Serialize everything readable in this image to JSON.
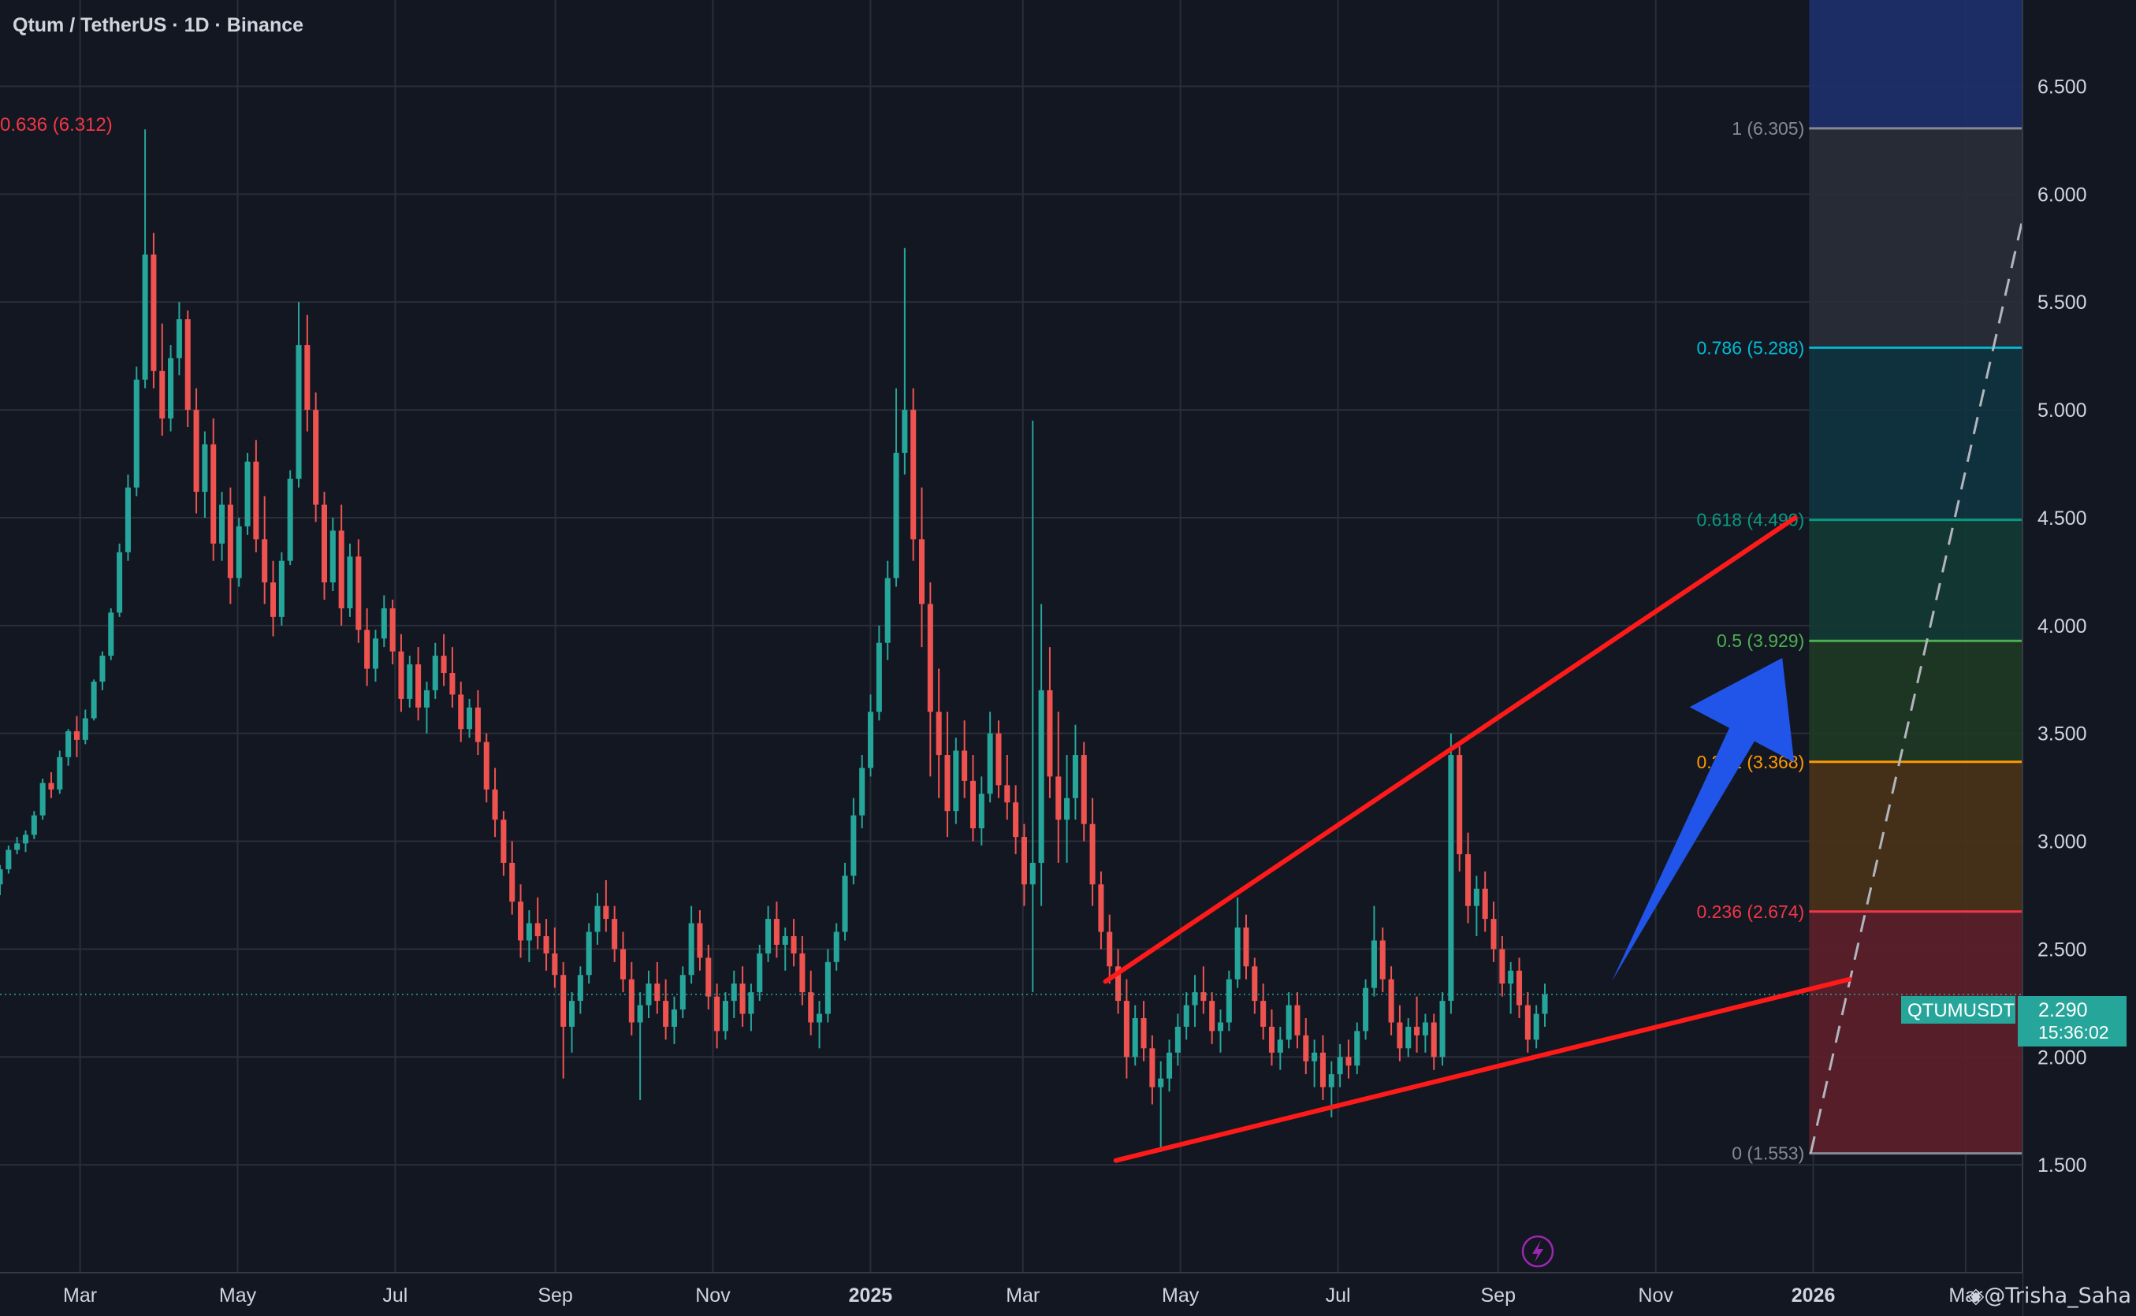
{
  "header": {
    "title": "Qtum / TetherUS · 1D · Binance"
  },
  "watermark": {
    "text": "◈@Trisha_Saha"
  },
  "chart_data": {
    "type": "candlestick",
    "symbol": "QTUMUSDT",
    "x_axis": {
      "labels": [
        {
          "date": "2024-03-01",
          "label": "Mar"
        },
        {
          "date": "2024-05-01",
          "label": "May"
        },
        {
          "date": "2024-07-01",
          "label": "Jul"
        },
        {
          "date": "2024-09-01",
          "label": "Sep"
        },
        {
          "date": "2024-11-01",
          "label": "Nov"
        },
        {
          "date": "2025-01-01",
          "label": "2025"
        },
        {
          "date": "2025-03-01",
          "label": "Mar"
        },
        {
          "date": "2025-05-01",
          "label": "May"
        },
        {
          "date": "2025-07-01",
          "label": "Jul"
        },
        {
          "date": "2025-09-01",
          "label": "Sep"
        },
        {
          "date": "2025-11-01",
          "label": "Nov"
        },
        {
          "date": "2026-01-01",
          "label": "2026"
        },
        {
          "date": "2026-03-01",
          "label": "Mar"
        }
      ],
      "range": [
        "2024-01-30",
        "2026-03-23"
      ]
    },
    "y_axis": {
      "ticks": [
        "1.500",
        "2.000",
        "2.500",
        "3.000",
        "3.500",
        "4.000",
        "4.500",
        "5.000",
        "5.500",
        "6.000",
        "6.500"
      ],
      "range": [
        1.0,
        6.9
      ]
    },
    "grid": true,
    "last_price": {
      "symbol": "QTUMUSDT",
      "value": "2.290",
      "countdown": "15:36:02",
      "price": 2.29
    },
    "high_marker": {
      "text": "0.636 (6.312)"
    },
    "fibonacci": {
      "start": {
        "date": "2025-12-31",
        "price": 1.553
      },
      "end": {
        "date": "2026-03-31",
        "price": 6.305
      },
      "levels": [
        {
          "ratio": 0,
          "price": 1.553,
          "label": "0 (1.553)",
          "color": "#868993"
        },
        {
          "ratio": 0.236,
          "price": 2.674,
          "label": "0.236 (2.674)",
          "color": "#f23645"
        },
        {
          "ratio": 0.382,
          "price": 3.368,
          "label": "0.382 (3.368)",
          "color": "#ff9800"
        },
        {
          "ratio": 0.5,
          "price": 3.929,
          "label": "0.5 (3.929)",
          "color": "#4caf50"
        },
        {
          "ratio": 0.618,
          "price": 4.49,
          "label": "0.618 (4.490)",
          "color": "#089981"
        },
        {
          "ratio": 0.786,
          "price": 5.288,
          "label": "0.786 (5.288)",
          "color": "#00bcd4"
        },
        {
          "ratio": 1,
          "price": 6.305,
          "label": "1 (6.305)",
          "color": "#868993"
        }
      ],
      "zones": [
        "#5d1f2a",
        "#4a3218",
        "#1f3a25",
        "#133a33",
        "#0f3440",
        "#2a2e39",
        "#1e2f6b"
      ]
    },
    "trendlines": [
      {
        "name": "upper",
        "color": "#ff1a1a",
        "from": {
          "date": "2025-04-02",
          "price": 2.35
        },
        "to": {
          "date": "2025-12-25",
          "price": 4.5
        }
      },
      {
        "name": "lower",
        "color": "#ff1a1a",
        "from": {
          "date": "2025-04-06",
          "price": 1.52
        },
        "to": {
          "date": "2026-01-15",
          "price": 2.36
        }
      }
    ],
    "arrow": {
      "color": "#2154e8",
      "from": {
        "date": "2025-10-15",
        "price": 2.35
      },
      "to": {
        "date": "2025-12-20",
        "price": 3.85
      }
    },
    "candles_ohlc": [
      [
        2.8,
        2.89,
        2.75,
        2.87
      ],
      [
        2.87,
        2.98,
        2.85,
        2.96
      ],
      [
        2.96,
        3.02,
        2.94,
        2.99
      ],
      [
        2.99,
        3.05,
        2.95,
        3.03
      ],
      [
        3.03,
        3.14,
        3.01,
        3.12
      ],
      [
        3.12,
        3.29,
        3.1,
        3.27
      ],
      [
        3.27,
        3.32,
        3.2,
        3.24
      ],
      [
        3.24,
        3.42,
        3.22,
        3.39
      ],
      [
        3.39,
        3.52,
        3.35,
        3.51
      ],
      [
        3.51,
        3.58,
        3.39,
        3.47
      ],
      [
        3.47,
        3.61,
        3.45,
        3.57
      ],
      [
        3.57,
        3.75,
        3.56,
        3.74
      ],
      [
        3.74,
        3.88,
        3.7,
        3.86
      ],
      [
        3.86,
        4.08,
        3.84,
        4.06
      ],
      [
        4.06,
        4.38,
        4.04,
        4.34
      ],
      [
        4.34,
        4.7,
        4.3,
        4.64
      ],
      [
        4.64,
        5.2,
        4.6,
        5.14
      ],
      [
        5.14,
        6.3,
        5.1,
        5.72
      ],
      [
        5.72,
        5.82,
        5.1,
        5.18
      ],
      [
        5.18,
        5.4,
        4.88,
        4.96
      ],
      [
        4.96,
        5.3,
        4.9,
        5.24
      ],
      [
        5.24,
        5.5,
        5.16,
        5.42
      ],
      [
        5.42,
        5.46,
        4.92,
        5.0
      ],
      [
        5.0,
        5.1,
        4.52,
        4.62
      ],
      [
        4.62,
        4.9,
        4.5,
        4.84
      ],
      [
        4.84,
        4.96,
        4.3,
        4.38
      ],
      [
        4.38,
        4.62,
        4.3,
        4.56
      ],
      [
        4.56,
        4.64,
        4.1,
        4.22
      ],
      [
        4.22,
        4.5,
        4.18,
        4.46
      ],
      [
        4.46,
        4.8,
        4.42,
        4.76
      ],
      [
        4.76,
        4.86,
        4.34,
        4.4
      ],
      [
        4.4,
        4.6,
        4.1,
        4.2
      ],
      [
        4.2,
        4.3,
        3.95,
        4.04
      ],
      [
        4.04,
        4.34,
        4.0,
        4.3
      ],
      [
        4.3,
        4.72,
        4.28,
        4.68
      ],
      [
        4.68,
        5.5,
        4.64,
        5.3
      ],
      [
        5.3,
        5.44,
        4.9,
        5.0
      ],
      [
        5.0,
        5.08,
        4.48,
        4.56
      ],
      [
        4.56,
        4.62,
        4.12,
        4.2
      ],
      [
        4.2,
        4.5,
        4.16,
        4.44
      ],
      [
        4.44,
        4.56,
        4.0,
        4.08
      ],
      [
        4.08,
        4.38,
        4.04,
        4.32
      ],
      [
        4.32,
        4.4,
        3.92,
        3.98
      ],
      [
        3.98,
        4.08,
        3.72,
        3.8
      ],
      [
        3.8,
        3.98,
        3.74,
        3.94
      ],
      [
        3.94,
        4.14,
        3.9,
        4.08
      ],
      [
        4.08,
        4.12,
        3.82,
        3.88
      ],
      [
        3.88,
        3.96,
        3.6,
        3.66
      ],
      [
        3.66,
        3.86,
        3.62,
        3.82
      ],
      [
        3.82,
        3.9,
        3.56,
        3.62
      ],
      [
        3.62,
        3.74,
        3.5,
        3.7
      ],
      [
        3.7,
        3.92,
        3.66,
        3.86
      ],
      [
        3.86,
        3.96,
        3.72,
        3.78
      ],
      [
        3.78,
        3.9,
        3.62,
        3.68
      ],
      [
        3.68,
        3.74,
        3.46,
        3.52
      ],
      [
        3.52,
        3.66,
        3.48,
        3.62
      ],
      [
        3.62,
        3.7,
        3.4,
        3.46
      ],
      [
        3.46,
        3.5,
        3.18,
        3.24
      ],
      [
        3.24,
        3.34,
        3.02,
        3.1
      ],
      [
        3.1,
        3.14,
        2.84,
        2.9
      ],
      [
        2.9,
        3.0,
        2.66,
        2.72
      ],
      [
        2.72,
        2.8,
        2.46,
        2.54
      ],
      [
        2.54,
        2.68,
        2.44,
        2.62
      ],
      [
        2.62,
        2.74,
        2.5,
        2.56
      ],
      [
        2.56,
        2.64,
        2.4,
        2.48
      ],
      [
        2.48,
        2.6,
        2.32,
        2.38
      ],
      [
        2.38,
        2.44,
        1.9,
        2.14
      ],
      [
        2.14,
        2.3,
        2.02,
        2.26
      ],
      [
        2.26,
        2.42,
        2.2,
        2.38
      ],
      [
        2.38,
        2.62,
        2.34,
        2.58
      ],
      [
        2.58,
        2.76,
        2.52,
        2.7
      ],
      [
        2.7,
        2.82,
        2.58,
        2.64
      ],
      [
        2.64,
        2.7,
        2.44,
        2.5
      ],
      [
        2.5,
        2.58,
        2.3,
        2.36
      ],
      [
        2.36,
        2.44,
        2.1,
        2.16
      ],
      [
        2.16,
        2.3,
        1.8,
        2.24
      ],
      [
        2.24,
        2.4,
        2.18,
        2.34
      ],
      [
        2.34,
        2.44,
        2.2,
        2.26
      ],
      [
        2.26,
        2.36,
        2.08,
        2.14
      ],
      [
        2.14,
        2.28,
        2.06,
        2.22
      ],
      [
        2.22,
        2.42,
        2.18,
        2.38
      ],
      [
        2.38,
        2.7,
        2.34,
        2.62
      ],
      [
        2.62,
        2.68,
        2.4,
        2.46
      ],
      [
        2.46,
        2.52,
        2.22,
        2.28
      ],
      [
        2.28,
        2.34,
        2.04,
        2.12
      ],
      [
        2.12,
        2.3,
        2.08,
        2.26
      ],
      [
        2.26,
        2.4,
        2.18,
        2.34
      ],
      [
        2.34,
        2.42,
        2.14,
        2.2
      ],
      [
        2.2,
        2.34,
        2.12,
        2.3
      ],
      [
        2.3,
        2.52,
        2.26,
        2.48
      ],
      [
        2.48,
        2.7,
        2.44,
        2.64
      ],
      [
        2.64,
        2.72,
        2.46,
        2.52
      ],
      [
        2.52,
        2.6,
        2.4,
        2.56
      ],
      [
        2.56,
        2.64,
        2.42,
        2.48
      ],
      [
        2.48,
        2.56,
        2.24,
        2.3
      ],
      [
        2.3,
        2.4,
        2.1,
        2.16
      ],
      [
        2.16,
        2.26,
        2.04,
        2.2
      ],
      [
        2.2,
        2.5,
        2.16,
        2.44
      ],
      [
        2.44,
        2.62,
        2.4,
        2.58
      ],
      [
        2.58,
        2.9,
        2.54,
        2.84
      ],
      [
        2.84,
        3.2,
        2.8,
        3.12
      ],
      [
        3.12,
        3.4,
        3.06,
        3.34
      ],
      [
        3.34,
        3.68,
        3.3,
        3.6
      ],
      [
        3.6,
        4.0,
        3.56,
        3.92
      ],
      [
        3.92,
        4.3,
        3.84,
        4.22
      ],
      [
        4.22,
        5.1,
        4.18,
        4.8
      ],
      [
        4.8,
        5.75,
        4.7,
        5.0
      ],
      [
        5.0,
        5.1,
        4.3,
        4.4
      ],
      [
        4.4,
        4.64,
        3.9,
        4.1
      ],
      [
        4.1,
        4.2,
        3.3,
        3.6
      ],
      [
        3.6,
        3.8,
        3.2,
        3.4
      ],
      [
        3.4,
        3.6,
        3.02,
        3.14
      ],
      [
        3.14,
        3.48,
        3.08,
        3.42
      ],
      [
        3.42,
        3.56,
        3.2,
        3.28
      ],
      [
        3.28,
        3.4,
        3.0,
        3.06
      ],
      [
        3.06,
        3.3,
        2.98,
        3.22
      ],
      [
        3.22,
        3.6,
        3.18,
        3.5
      ],
      [
        3.5,
        3.56,
        3.2,
        3.26
      ],
      [
        3.26,
        3.4,
        3.1,
        3.18
      ],
      [
        3.18,
        3.26,
        2.94,
        3.02
      ],
      [
        3.02,
        3.08,
        2.7,
        2.8
      ],
      [
        2.8,
        4.95,
        2.3,
        2.9
      ],
      [
        2.9,
        4.1,
        2.7,
        3.7
      ],
      [
        3.7,
        3.9,
        3.2,
        3.3
      ],
      [
        3.3,
        3.6,
        2.9,
        3.1
      ],
      [
        3.1,
        3.4,
        2.9,
        3.2
      ],
      [
        3.2,
        3.54,
        3.1,
        3.4
      ],
      [
        3.4,
        3.46,
        3.0,
        3.08
      ],
      [
        3.08,
        3.2,
        2.7,
        2.8
      ],
      [
        2.8,
        2.86,
        2.5,
        2.58
      ],
      [
        2.58,
        2.66,
        2.34,
        2.42
      ],
      [
        2.42,
        2.5,
        2.2,
        2.26
      ],
      [
        2.26,
        2.36,
        1.9,
        2.0
      ],
      [
        2.0,
        2.24,
        1.96,
        2.18
      ],
      [
        2.18,
        2.26,
        1.98,
        2.04
      ],
      [
        2.04,
        2.1,
        1.78,
        1.86
      ],
      [
        1.86,
        1.98,
        1.56,
        1.9
      ],
      [
        1.9,
        2.08,
        1.84,
        2.02
      ],
      [
        2.02,
        2.2,
        1.96,
        2.14
      ],
      [
        2.14,
        2.3,
        2.08,
        2.24
      ],
      [
        2.24,
        2.38,
        2.14,
        2.3
      ],
      [
        2.3,
        2.42,
        2.2,
        2.26
      ],
      [
        2.26,
        2.3,
        2.06,
        2.12
      ],
      [
        2.12,
        2.22,
        2.02,
        2.16
      ],
      [
        2.16,
        2.4,
        2.12,
        2.36
      ],
      [
        2.36,
        2.74,
        2.32,
        2.6
      ],
      [
        2.6,
        2.66,
        2.36,
        2.42
      ],
      [
        2.42,
        2.46,
        2.2,
        2.26
      ],
      [
        2.26,
        2.34,
        2.08,
        2.14
      ],
      [
        2.14,
        2.22,
        1.96,
        2.02
      ],
      [
        2.02,
        2.14,
        1.94,
        2.08
      ],
      [
        2.08,
        2.3,
        2.04,
        2.24
      ],
      [
        2.24,
        2.3,
        2.04,
        2.1
      ],
      [
        2.1,
        2.18,
        1.92,
        1.98
      ],
      [
        1.98,
        2.08,
        1.86,
        2.02
      ],
      [
        2.02,
        2.1,
        1.8,
        1.86
      ],
      [
        1.86,
        1.98,
        1.72,
        1.92
      ],
      [
        1.92,
        2.06,
        1.86,
        2.0
      ],
      [
        2.0,
        2.08,
        1.9,
        1.96
      ],
      [
        1.96,
        2.16,
        1.92,
        2.12
      ],
      [
        2.12,
        2.36,
        2.08,
        2.32
      ],
      [
        2.32,
        2.7,
        2.28,
        2.54
      ],
      [
        2.54,
        2.6,
        2.3,
        2.36
      ],
      [
        2.36,
        2.42,
        2.1,
        2.16
      ],
      [
        2.16,
        2.24,
        1.98,
        2.04
      ],
      [
        2.04,
        2.18,
        2.0,
        2.14
      ],
      [
        2.14,
        2.28,
        2.02,
        2.1
      ],
      [
        2.1,
        2.2,
        2.02,
        2.16
      ],
      [
        2.16,
        2.2,
        1.94,
        2.0
      ],
      [
        2.0,
        2.3,
        1.96,
        2.26
      ],
      [
        2.26,
        3.5,
        2.2,
        3.4
      ],
      [
        3.4,
        3.44,
        2.86,
        2.94
      ],
      [
        2.94,
        3.04,
        2.62,
        2.7
      ],
      [
        2.7,
        2.84,
        2.56,
        2.78
      ],
      [
        2.78,
        2.86,
        2.58,
        2.64
      ],
      [
        2.64,
        2.72,
        2.44,
        2.5
      ],
      [
        2.5,
        2.56,
        2.28,
        2.34
      ],
      [
        2.34,
        2.44,
        2.2,
        2.4
      ],
      [
        2.4,
        2.46,
        2.18,
        2.24
      ],
      [
        2.24,
        2.3,
        2.02,
        2.08
      ],
      [
        2.08,
        2.24,
        2.04,
        2.2
      ],
      [
        2.2,
        2.34,
        2.14,
        2.29
      ]
    ]
  }
}
